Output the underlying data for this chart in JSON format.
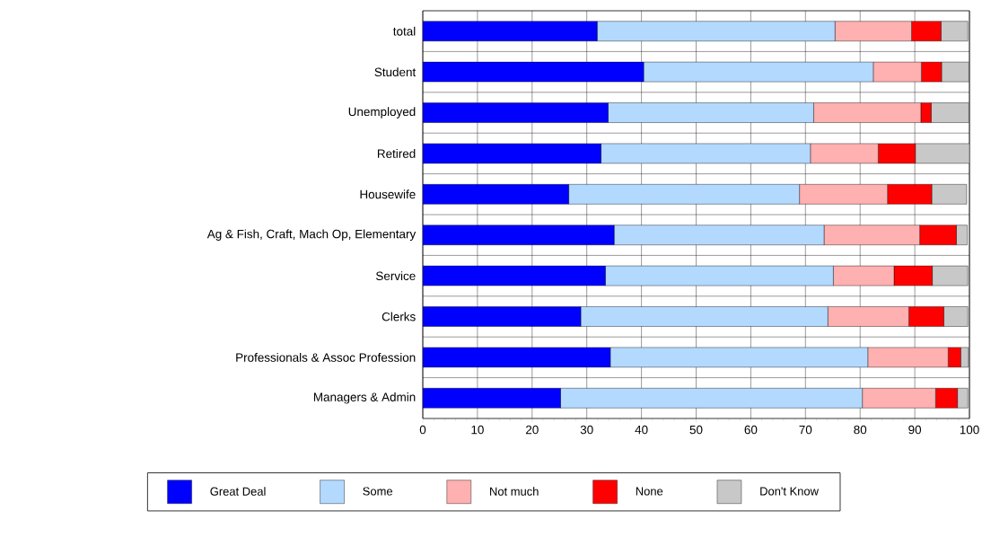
{
  "chart_data": {
    "type": "bar",
    "orientation": "horizontal",
    "stacked": true,
    "categories": [
      "total",
      "Student",
      "Unemployed",
      "Retired",
      "Housewife",
      "Ag & Fish, Craft, Mach Op, Elementary",
      "Service",
      "Clerks",
      "Professionals & Assoc Profession",
      "Managers & Admin"
    ],
    "series": [
      {
        "name": "Great Deal",
        "color": "#0000ff",
        "values": [
          31.9,
          40.4,
          33.9,
          32.6,
          26.7,
          35.0,
          33.4,
          28.9,
          34.3,
          25.2
        ]
      },
      {
        "name": "Some",
        "color": "#b3d9ff",
        "values": [
          43.5,
          42.0,
          37.6,
          38.3,
          42.2,
          38.4,
          41.7,
          45.2,
          47.1,
          55.2
        ]
      },
      {
        "name": "Not much",
        "color": "#ffb0b0",
        "values": [
          14.0,
          8.8,
          19.6,
          12.4,
          16.1,
          17.5,
          11.1,
          14.8,
          14.7,
          13.4
        ]
      },
      {
        "name": "None",
        "color": "#ff0000",
        "values": [
          5.4,
          3.7,
          1.9,
          6.8,
          8.1,
          6.7,
          7.0,
          6.4,
          2.3,
          4.0
        ]
      },
      {
        "name": "Don't Know",
        "color": "#c8c8c8",
        "values": [
          4.9,
          5.0,
          6.9,
          9.9,
          6.4,
          2.0,
          6.5,
          4.4,
          1.4,
          1.9
        ]
      }
    ],
    "xlim": [
      0,
      100
    ],
    "xticks": [
      0,
      10,
      20,
      30,
      40,
      50,
      60,
      70,
      80,
      90,
      100
    ],
    "grid": true,
    "legend": "bottom"
  }
}
